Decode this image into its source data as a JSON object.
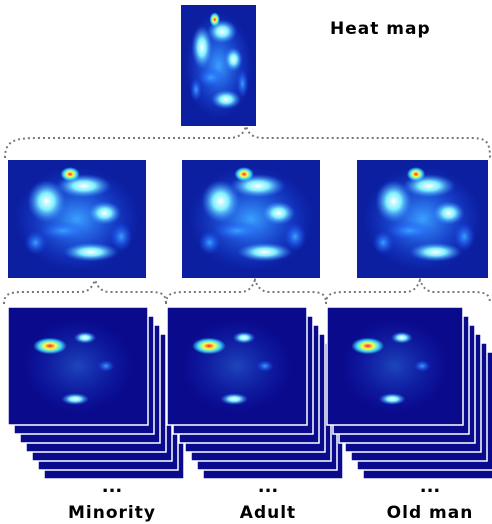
{
  "top": {
    "label": "Heat map"
  },
  "groups": [
    {
      "ellipsis": "...",
      "label": "Minority"
    },
    {
      "ellipsis": "...",
      "label": "Adult"
    },
    {
      "ellipsis": "...",
      "label": "Old man"
    }
  ]
}
